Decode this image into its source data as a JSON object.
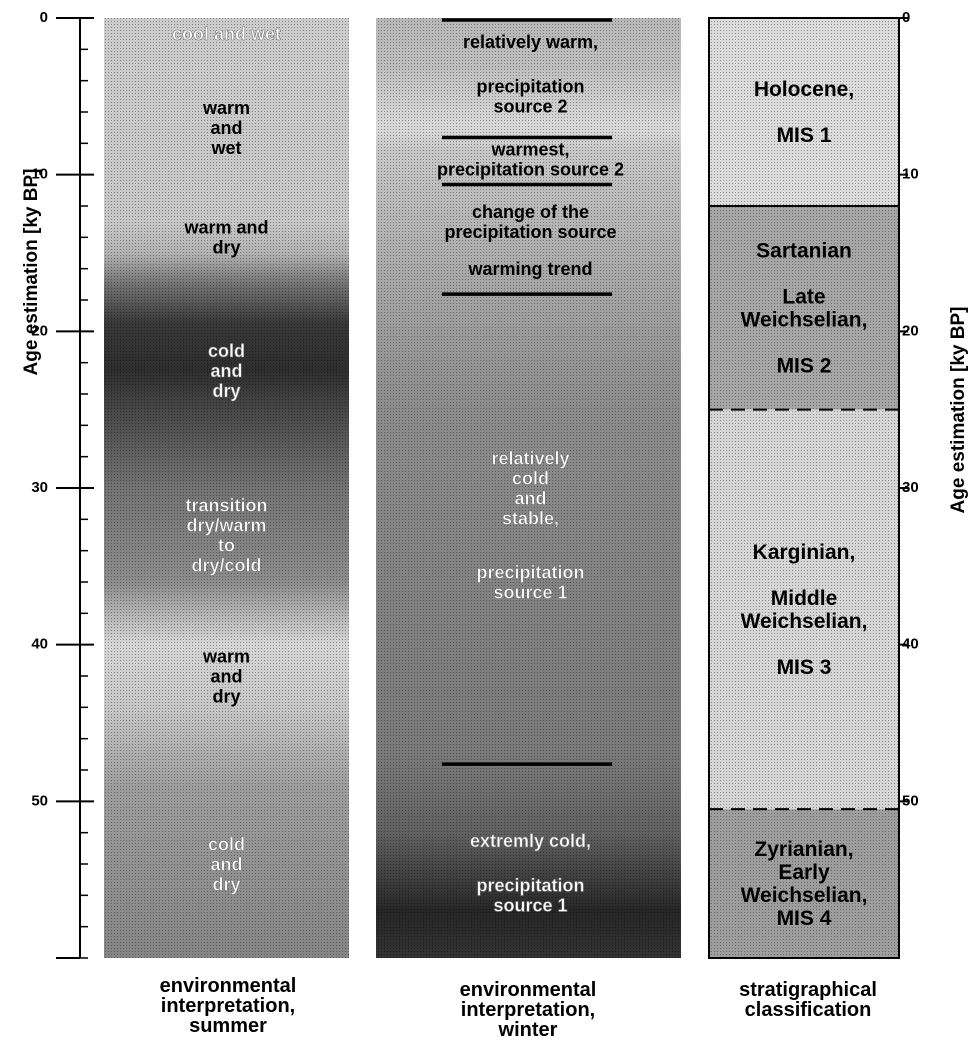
{
  "axis": {
    "title_left": "Age estimation [ky BP]",
    "title_right": "Age estimation [ky BP]",
    "range": [
      0,
      60
    ],
    "major_ticks": [
      0,
      10,
      20,
      30,
      40,
      50
    ],
    "minor_step": 2,
    "tick_labels": [
      "0",
      "10",
      "20",
      "30",
      "40",
      "50"
    ]
  },
  "colors": {
    "ink": "#000000",
    "light_shade": "#dcdcdc",
    "mid_shade": "#a0a0a0",
    "dark_shade": "#5a5a5a",
    "darkest_shade": "#333333",
    "panel_border": "#000000"
  },
  "columns": {
    "summer": {
      "caption": "environmental\ninterpretation,\nsummer",
      "labels": [
        {
          "text": "cool and wet",
          "age": 1,
          "tone": "light"
        },
        {
          "text": "warm\nand\nwet",
          "age": 7,
          "tone": "dark"
        },
        {
          "text": "warm and\ndry",
          "age": 14,
          "tone": "dark"
        },
        {
          "text": "cold\nand\ndry",
          "age": 22.5,
          "tone": "light"
        },
        {
          "text": "transition\ndry/warm\nto\ndry/cold",
          "age": 33,
          "tone": "light"
        },
        {
          "text": "warm\nand\ndry",
          "age": 42,
          "tone": "dark"
        },
        {
          "text": "cold\nand\ndry",
          "age": 54,
          "tone": "light"
        }
      ],
      "shading": [
        {
          "age": 0,
          "level": 0.2
        },
        {
          "age": 13,
          "level": 0.22
        },
        {
          "age": 15,
          "level": 0.3
        },
        {
          "age": 17,
          "level": 0.55
        },
        {
          "age": 19.5,
          "level": 0.78
        },
        {
          "age": 22.5,
          "level": 0.82
        },
        {
          "age": 25,
          "level": 0.72
        },
        {
          "age": 30,
          "level": 0.55
        },
        {
          "age": 36,
          "level": 0.45
        },
        {
          "age": 38,
          "level": 0.3
        },
        {
          "age": 40,
          "level": 0.16
        },
        {
          "age": 44,
          "level": 0.22
        },
        {
          "age": 49,
          "level": 0.38
        },
        {
          "age": 60,
          "level": 0.48
        }
      ]
    },
    "winter": {
      "caption": "environmental\ninterpretation,\nwinter",
      "boundaries": [
        0,
        7.5,
        10.5,
        17.5,
        47.5
      ],
      "labels": [
        {
          "text": "relatively warm,",
          "age": 1.5,
          "tone": "dark"
        },
        {
          "text": "precipitation\nsource 2",
          "age": 5,
          "tone": "dark"
        },
        {
          "text": "warmest,\nprecipitation source 2",
          "age": 9,
          "tone": "dark"
        },
        {
          "text": "change of the\nprecipitation source",
          "age": 13,
          "tone": "dark"
        },
        {
          "text": "warming trend",
          "age": 16,
          "tone": "dark"
        },
        {
          "text": "relatively\ncold\nand\nstable,",
          "age": 30,
          "tone": "light"
        },
        {
          "text": "precipitation\nsource 1",
          "age": 36,
          "tone": "light"
        },
        {
          "text": "extremly cold,",
          "age": 52.5,
          "tone": "light"
        },
        {
          "text": "precipitation\nsource 1",
          "age": 56,
          "tone": "light"
        }
      ],
      "shading": [
        {
          "age": 0,
          "level": 0.28
        },
        {
          "age": 3,
          "level": 0.26
        },
        {
          "age": 7,
          "level": 0.15
        },
        {
          "age": 8.5,
          "level": 0.22
        },
        {
          "age": 17,
          "level": 0.35
        },
        {
          "age": 25,
          "level": 0.45
        },
        {
          "age": 47,
          "level": 0.52
        },
        {
          "age": 52,
          "level": 0.62
        },
        {
          "age": 57,
          "level": 0.85
        },
        {
          "age": 60,
          "level": 0.8
        }
      ]
    },
    "strat": {
      "caption": "stratigraphical\nclassification",
      "units": [
        {
          "name": "Holocene,\n\nMIS 1",
          "from": 0,
          "to": 12,
          "tone": 0.14
        },
        {
          "name": "Sartanian\n\nLate\nWeichselian,\n\nMIS 2",
          "from": 12,
          "to": 25,
          "tone": 0.35
        },
        {
          "name": "Karginian,\n\nMiddle\nWeichselian,\n\nMIS 3",
          "from": 25,
          "to": 50.5,
          "tone": 0.16
        },
        {
          "name": "Zyrianian,\nEarly\nWeichselian,\nMIS  4",
          "from": 50.5,
          "to": 60,
          "tone": 0.38
        }
      ]
    }
  }
}
